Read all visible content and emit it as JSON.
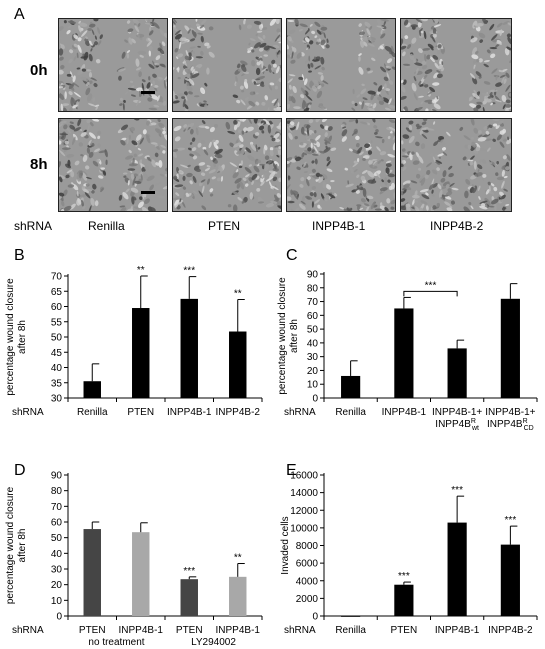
{
  "panelA": {
    "letter": "A",
    "rows": [
      "0h",
      "8h"
    ],
    "shrna_label": "shRNA",
    "columns": [
      "Renilla",
      "PTEN",
      "INPP4B-1",
      "INPP4B-2"
    ]
  },
  "chart_data": [
    {
      "id": "B",
      "type": "bar",
      "letter": "B",
      "ylabel": [
        "percentage wound closure",
        "after 8h"
      ],
      "xaxis_title": "shRNA",
      "ylim": [
        30,
        70
      ],
      "yticks": [
        30,
        35,
        40,
        45,
        50,
        55,
        60,
        65,
        70
      ],
      "categories": [
        "Renilla",
        "PTEN",
        "INPP4B-1",
        "INPP4B-2"
      ],
      "values": [
        35.5,
        59.5,
        62.5,
        51.8
      ],
      "errors": [
        5.7,
        10.5,
        7.3,
        10.5
      ],
      "annotations": [
        "",
        "**",
        "***",
        "**"
      ],
      "colors": [
        "#000000",
        "#000000",
        "#000000",
        "#000000"
      ]
    },
    {
      "id": "C",
      "type": "bar",
      "letter": "C",
      "ylabel": [
        "percentage wound closure",
        "after 8h"
      ],
      "xaxis_title": "shRNA",
      "ylim": [
        0,
        90
      ],
      "yticks": [
        0,
        10,
        20,
        30,
        40,
        50,
        60,
        70,
        80,
        90
      ],
      "categories": [
        "Renilla",
        "INPP4B-1",
        "INPP4B-1+ INPP4B^R_wt",
        "INPP4B-1+ INPP4B^R_CD"
      ],
      "values": [
        16,
        65,
        36,
        72
      ],
      "errors": [
        11,
        8,
        6,
        11
      ],
      "bracket": {
        "from": 1,
        "to": 2,
        "label": "***"
      },
      "colors": [
        "#000000",
        "#000000",
        "#000000",
        "#000000"
      ]
    },
    {
      "id": "D",
      "type": "bar",
      "letter": "D",
      "ylabel": [
        "percentage wound closure",
        "after 8h"
      ],
      "xaxis_title": "shRNA",
      "ylim": [
        0,
        90
      ],
      "yticks": [
        0,
        10,
        20,
        30,
        40,
        50,
        60,
        70,
        80,
        90
      ],
      "categories": [
        "PTEN",
        "INPP4B-1",
        "PTEN",
        "INPP4B-1"
      ],
      "values": [
        55.5,
        53.5,
        23.5,
        25
      ],
      "errors": [
        4.5,
        6,
        1.5,
        8.5
      ],
      "annotations": [
        "",
        "",
        "***",
        "**"
      ],
      "groups": [
        "no treatment",
        "LY294002"
      ],
      "colors": [
        "#454545",
        "#a8a8a8",
        "#454545",
        "#a8a8a8"
      ]
    },
    {
      "id": "E",
      "type": "bar",
      "letter": "E",
      "ylabel": [
        "Invaded cells"
      ],
      "xaxis_title": "shRNA",
      "ylim": [
        0,
        16000
      ],
      "yticks": [
        0,
        2000,
        4000,
        6000,
        8000,
        10000,
        12000,
        14000,
        16000
      ],
      "categories": [
        "Renilla",
        "PTEN",
        "INPP4B-1",
        "INPP4B-2"
      ],
      "values": [
        20,
        3550,
        10600,
        8100
      ],
      "errors": [
        0,
        300,
        3000,
        2100
      ],
      "annotations": [
        "",
        "***",
        "***",
        "***"
      ],
      "colors": [
        "#000000",
        "#000000",
        "#000000",
        "#000000"
      ]
    }
  ]
}
